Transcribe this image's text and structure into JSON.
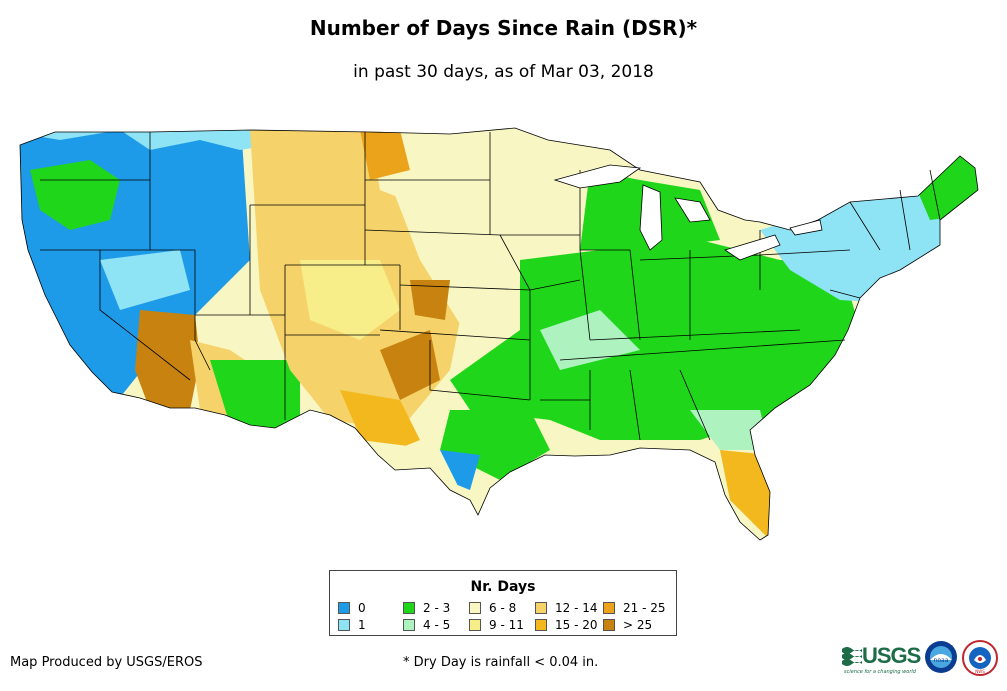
{
  "title": "Number of Days Since Rain (DSR)*",
  "subtitle": "in past 30 days, as of Mar 03, 2018",
  "legend": {
    "title": "Nr. Days",
    "items": [
      {
        "label": "0",
        "color": "#1e9be8"
      },
      {
        "label": "1",
        "color": "#8ee3f5"
      },
      {
        "label": "2 - 3",
        "color": "#1fd61a"
      },
      {
        "label": "4 - 5",
        "color": "#aef2c0"
      },
      {
        "label": "6 - 8",
        "color": "#f8f7c4"
      },
      {
        "label": "9 - 11",
        "color": "#f7ee8a"
      },
      {
        "label": "12 - 14",
        "color": "#f5d36a"
      },
      {
        "label": "15 - 20",
        "color": "#f2b81d"
      },
      {
        "label": "21 - 25",
        "color": "#eaa31b"
      },
      {
        "label": "> 25",
        "color": "#c7820f"
      }
    ]
  },
  "credit": "Map Produced by USGS/EROS",
  "footnote": "* Dry Day is rainfall < 0.04 in.",
  "logos": {
    "usgs": "USGS",
    "usgs_tagline": "science for a changing world",
    "noaa": "noaa",
    "nws": "NWS"
  }
}
